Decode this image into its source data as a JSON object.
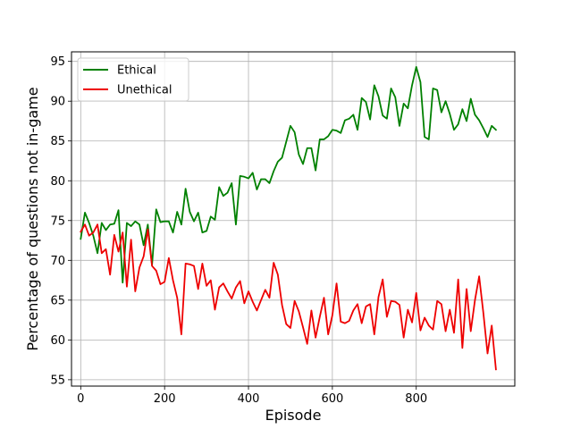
{
  "chart_data": {
    "type": "line",
    "xlabel": "Episode",
    "ylabel": "Percentage of questions not in-game",
    "xlim": [
      -22,
      1035
    ],
    "ylim": [
      54.2,
      96.2
    ],
    "xticks": [
      0,
      200,
      400,
      600,
      800
    ],
    "yticks": [
      55,
      60,
      65,
      70,
      75,
      80,
      85,
      90,
      95
    ],
    "grid": true,
    "legend_position": "top-left",
    "series": [
      {
        "name": "Ethical",
        "color": "#008000",
        "x": [
          0,
          10,
          20,
          30,
          40,
          50,
          60,
          70,
          80,
          90,
          100,
          110,
          120,
          130,
          140,
          150,
          160,
          170,
          180,
          190,
          200,
          210,
          220,
          230,
          240,
          250,
          260,
          270,
          280,
          290,
          300,
          310,
          320,
          330,
          340,
          350,
          360,
          370,
          380,
          390,
          400,
          410,
          420,
          430,
          440,
          450,
          460,
          470,
          480,
          490,
          500,
          510,
          520,
          530,
          540,
          550,
          560,
          570,
          580,
          590,
          600,
          610,
          620,
          630,
          640,
          650,
          660,
          670,
          680,
          690,
          700,
          710,
          720,
          730,
          740,
          750,
          760,
          770,
          780,
          790,
          800,
          810,
          820,
          830,
          840,
          850,
          860,
          870,
          880,
          890,
          900,
          910,
          920,
          930,
          940,
          950,
          960,
          970,
          980,
          990
        ],
        "values": [
          72.7,
          76.0,
          74.7,
          73.1,
          70.9,
          74.7,
          73.8,
          74.5,
          74.6,
          76.3,
          67.2,
          74.7,
          74.3,
          74.9,
          74.5,
          71.9,
          74.5,
          69.4,
          76.4,
          74.8,
          74.9,
          74.9,
          73.5,
          76.1,
          74.5,
          79.0,
          76.1,
          74.9,
          76.0,
          73.5,
          73.7,
          75.5,
          75.1,
          79.2,
          78.1,
          78.5,
          79.7,
          74.5,
          80.6,
          80.5,
          80.3,
          81.0,
          78.9,
          80.2,
          80.2,
          79.7,
          81.2,
          82.4,
          82.9,
          84.9,
          86.9,
          86.1,
          83.3,
          82.1,
          84.1,
          84.1,
          81.3,
          85.2,
          85.2,
          85.6,
          86.4,
          86.3,
          86.0,
          87.6,
          87.8,
          88.3,
          86.4,
          90.4,
          89.9,
          87.7,
          92.0,
          90.6,
          88.2,
          87.8,
          91.6,
          90.5,
          86.9,
          89.7,
          89.1,
          92.0,
          94.3,
          92.4,
          85.5,
          85.2,
          91.6,
          91.4,
          88.6,
          90.0,
          88.4,
          86.4,
          87.1,
          89.0,
          87.5,
          90.3,
          88.3,
          87.6,
          86.6,
          85.5,
          86.9,
          86.4
        ]
      },
      {
        "name": "Unethical",
        "color": "#ee0000",
        "x": [
          0,
          10,
          20,
          30,
          40,
          50,
          60,
          70,
          80,
          90,
          100,
          110,
          120,
          130,
          140,
          150,
          160,
          170,
          180,
          190,
          200,
          210,
          220,
          230,
          240,
          250,
          260,
          270,
          280,
          290,
          300,
          310,
          320,
          330,
          340,
          350,
          360,
          370,
          380,
          390,
          400,
          410,
          420,
          430,
          440,
          450,
          460,
          470,
          480,
          490,
          500,
          510,
          520,
          530,
          540,
          550,
          560,
          570,
          580,
          590,
          600,
          610,
          620,
          630,
          640,
          650,
          660,
          670,
          680,
          690,
          700,
          710,
          720,
          730,
          740,
          750,
          760,
          770,
          780,
          790,
          800,
          810,
          820,
          830,
          840,
          850,
          860,
          870,
          880,
          890,
          900,
          910,
          920,
          930,
          940,
          950,
          960,
          970,
          980,
          990
        ],
        "values": [
          73.6,
          74.5,
          73.1,
          73.5,
          74.5,
          70.9,
          71.4,
          68.2,
          73.2,
          71.1,
          73.5,
          66.7,
          72.6,
          66.1,
          69.1,
          70.5,
          73.9,
          69.3,
          68.7,
          67.0,
          67.3,
          70.3,
          67.5,
          65.3,
          60.7,
          69.6,
          69.5,
          69.3,
          66.4,
          69.6,
          66.8,
          67.5,
          63.8,
          66.6,
          67.1,
          66.1,
          65.2,
          66.6,
          67.4,
          64.6,
          66.1,
          64.8,
          63.7,
          65.0,
          66.3,
          65.3,
          69.7,
          68.2,
          64.4,
          62.0,
          61.5,
          64.9,
          63.6,
          61.6,
          59.5,
          63.7,
          60.3,
          62.9,
          65.3,
          60.7,
          63.1,
          67.1,
          62.3,
          62.1,
          62.4,
          63.7,
          64.5,
          62.1,
          64.2,
          64.5,
          60.7,
          65.4,
          67.6,
          62.9,
          64.9,
          64.8,
          64.4,
          60.3,
          63.8,
          62.2,
          65.9,
          61.2,
          62.8,
          61.8,
          61.3,
          64.9,
          64.5,
          61.1,
          63.8,
          60.9,
          67.6,
          59.0,
          66.4,
          61.1,
          65.0,
          68.0,
          63.4,
          58.3,
          61.8,
          56.3
        ]
      }
    ]
  }
}
